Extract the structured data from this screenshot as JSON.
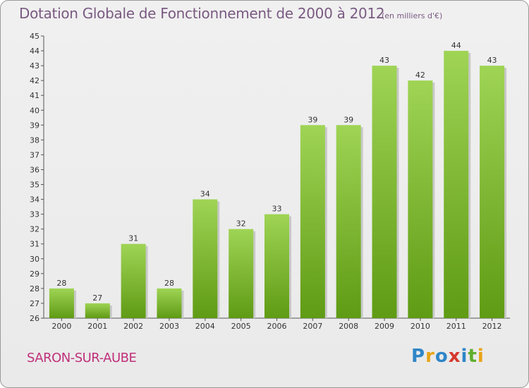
{
  "header": {
    "title": "Dotation Globale de Fonctionnement de 2000 à 2012",
    "unit": "(en milliers d'€)"
  },
  "footer": {
    "commune": "SARON-SUR-AUBE",
    "logo_text": "Proxiti"
  },
  "chart_data": {
    "type": "bar",
    "title": "Dotation Globale de Fonctionnement de 2000 à 2012",
    "subtitle": "(en milliers d'€)",
    "categories": [
      "2000",
      "2001",
      "2002",
      "2003",
      "2004",
      "2005",
      "2006",
      "2007",
      "2008",
      "2009",
      "2010",
      "2011",
      "2012"
    ],
    "values": [
      28,
      27,
      31,
      28,
      34,
      32,
      33,
      39,
      39,
      43,
      42,
      44,
      43
    ],
    "ylim": [
      26,
      45
    ],
    "yticks": [
      26,
      27,
      28,
      29,
      30,
      31,
      32,
      33,
      34,
      35,
      36,
      37,
      38,
      39,
      40,
      41,
      42,
      43,
      44,
      45
    ],
    "grid": false,
    "data_labels": true,
    "colors": {
      "bar_top": "#9fd455",
      "bar_bottom": "#5f9b14",
      "text": "#333333"
    }
  }
}
